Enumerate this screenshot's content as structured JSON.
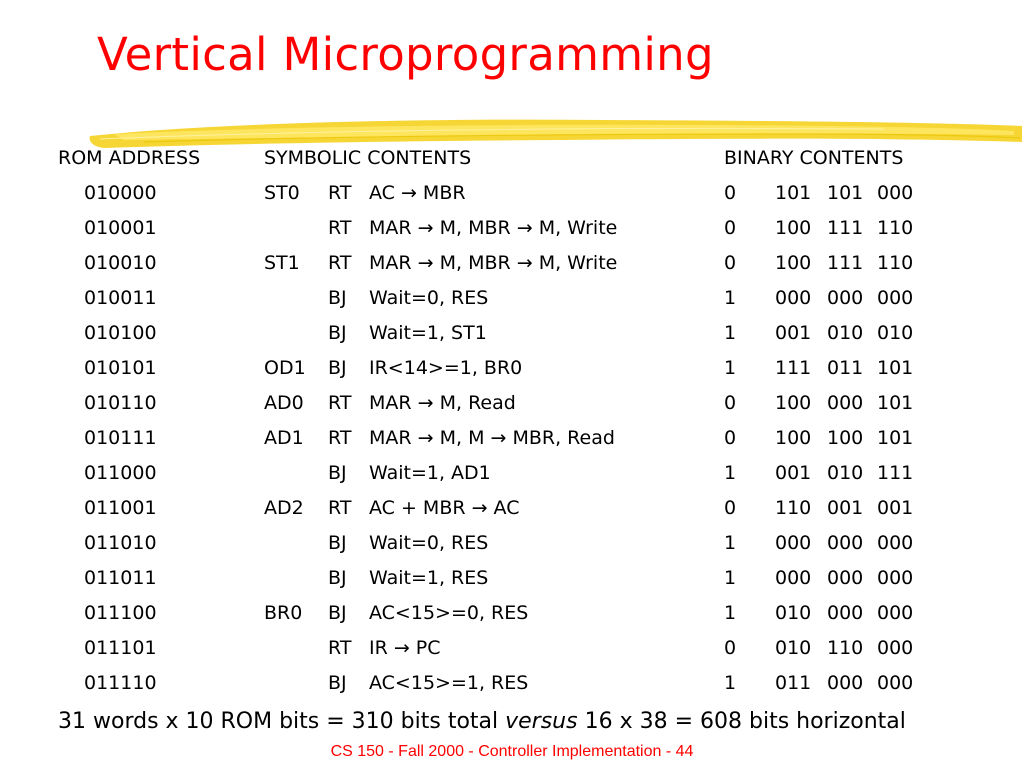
{
  "title": "Vertical Microprogramming",
  "headers": {
    "rom_address": "ROM ADDRESS",
    "symbolic": "SYMBOLIC CONTENTS",
    "binary": "BINARY CONTENTS"
  },
  "rows": [
    {
      "addr": "010000",
      "label": "ST0",
      "type": "RT",
      "op": "AC → MBR",
      "bin": [
        "0",
        "101",
        "101",
        "000"
      ]
    },
    {
      "addr": "010001",
      "label": "",
      "type": "RT",
      "op": "MAR → M, MBR → M, Write",
      "bin": [
        "0",
        "100",
        "111",
        "110"
      ]
    },
    {
      "addr": "010010",
      "label": "ST1",
      "type": "RT",
      "op": "MAR → M, MBR → M, Write",
      "bin": [
        "0",
        "100",
        "111",
        "110"
      ]
    },
    {
      "addr": "010011",
      "label": "",
      "type": "BJ",
      "op": "Wait=0, RES",
      "bin": [
        "1",
        "000",
        "000",
        "000"
      ]
    },
    {
      "addr": "010100",
      "label": "",
      "type": "BJ",
      "op": "Wait=1, ST1",
      "bin": [
        "1",
        "001",
        "010",
        "010"
      ]
    },
    {
      "addr": "010101",
      "label": "OD1",
      "type": "BJ",
      "op": "IR<14>=1, BR0",
      "bin": [
        "1",
        "111",
        "011",
        "101"
      ]
    },
    {
      "addr": "010110",
      "label": "AD0",
      "type": "RT",
      "op": "MAR → M, Read",
      "bin": [
        "0",
        "100",
        "000",
        "101"
      ]
    },
    {
      "addr": "010111",
      "label": "AD1",
      "type": "RT",
      "op": "MAR → M, M → MBR, Read",
      "bin": [
        "0",
        "100",
        "100",
        "101"
      ]
    },
    {
      "addr": "011000",
      "label": "",
      "type": "BJ",
      "op": "Wait=1, AD1",
      "bin": [
        "1",
        "001",
        "010",
        "111"
      ]
    },
    {
      "addr": "011001",
      "label": "AD2",
      "type": "RT",
      "op": "AC + MBR → AC",
      "bin": [
        "0",
        "110",
        "001",
        "001"
      ]
    },
    {
      "addr": "011010",
      "label": "",
      "type": "BJ",
      "op": "Wait=0, RES",
      "bin": [
        "1",
        "000",
        "000",
        "000"
      ]
    },
    {
      "addr": "011011",
      "label": "",
      "type": "BJ",
      "op": "Wait=1, RES",
      "bin": [
        "1",
        "000",
        "000",
        "000"
      ]
    },
    {
      "addr": "011100",
      "label": "BR0",
      "type": "BJ",
      "op": "AC<15>=0, RES",
      "bin": [
        "1",
        "010",
        "000",
        "000"
      ]
    },
    {
      "addr": "011101",
      "label": "",
      "type": "RT",
      "op": "IR → PC",
      "bin": [
        "0",
        "010",
        "110",
        "000"
      ]
    },
    {
      "addr": "011110",
      "label": "",
      "type": "BJ",
      "op": "AC<15>=1, RES",
      "bin": [
        "1",
        "011",
        "000",
        "000"
      ]
    }
  ],
  "summary": {
    "before": "31 words x 10 ROM bits = 310 bits total ",
    "versus": "versus",
    "after": " 16 x 38 = 608 bits horizontal"
  },
  "footer": "CS 150 - Fall 2000 - Controller Implementation - 44",
  "colors": {
    "title": "#ff0000",
    "footer": "#ff0000",
    "brush": "#f5d21e"
  }
}
